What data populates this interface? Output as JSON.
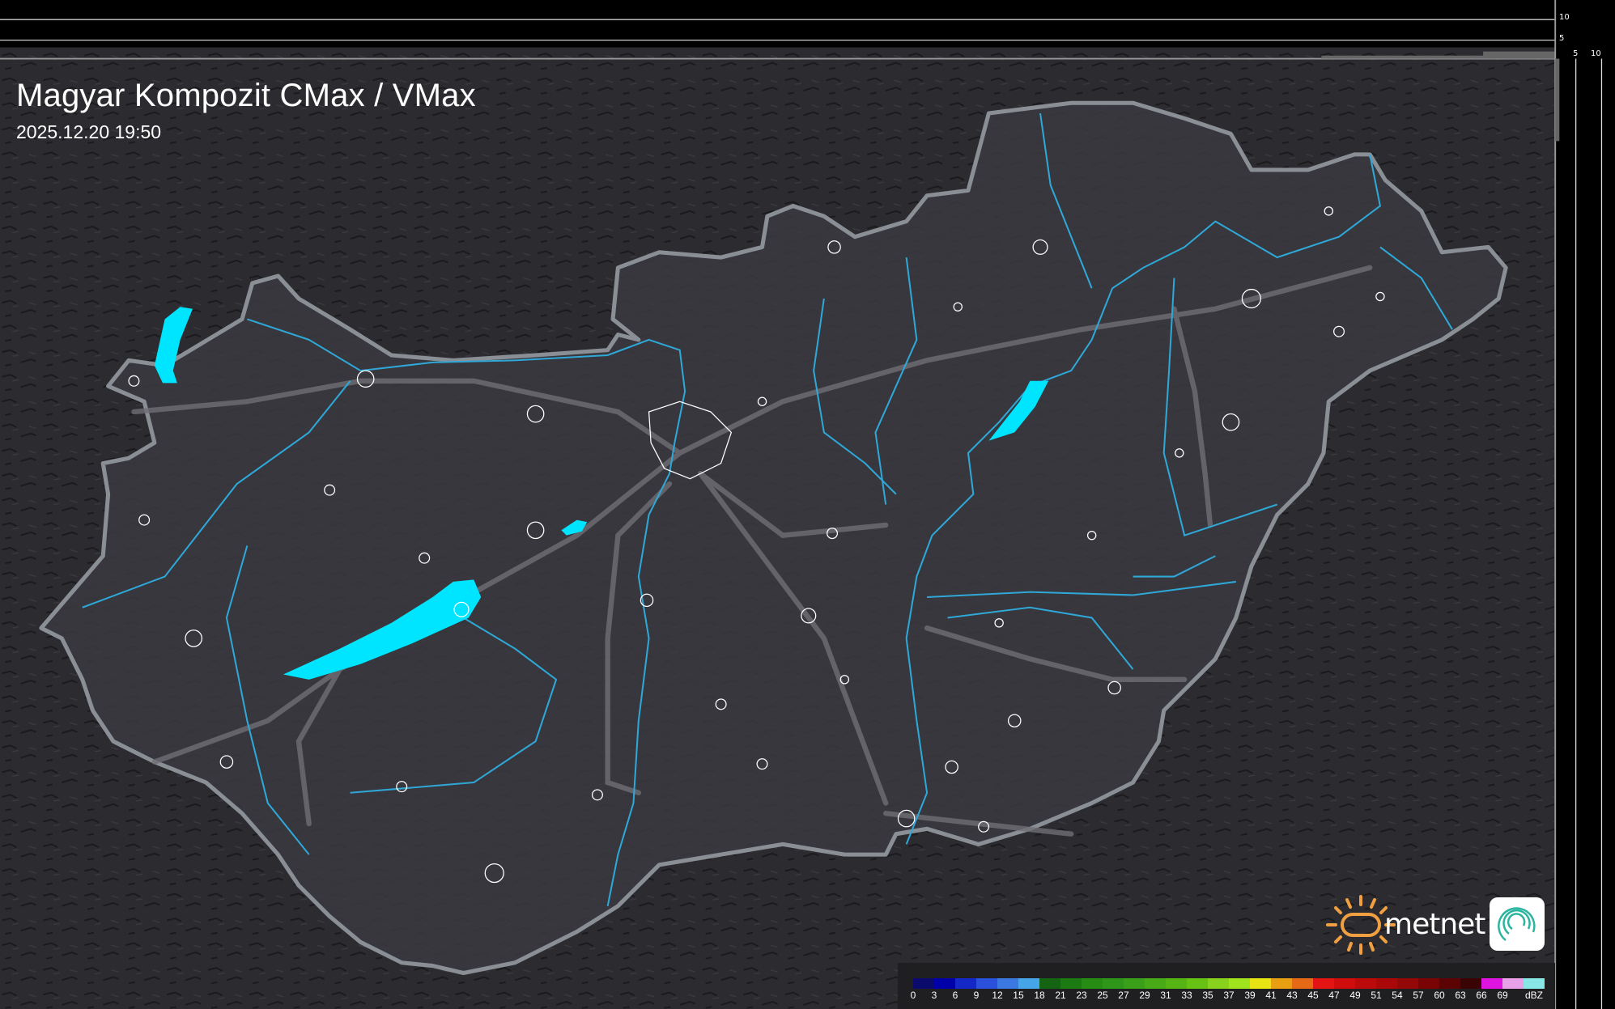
{
  "header": {
    "title": "Magyar Kompozit CMax / VMax",
    "timestamp": "2025.12.20 19:50"
  },
  "scale_ruler": {
    "vertical_ticks": [
      "10",
      "5"
    ],
    "horizontal_ticks": [
      "5",
      "10"
    ]
  },
  "logo": {
    "brand": "metnet"
  },
  "colors": {
    "background": "#2b2b2f",
    "country_fill": "#3a3a40",
    "border": "#8a8f96",
    "rivers": "#2fa8d8",
    "lakes": "#00e5ff",
    "roads": "#6e6e74",
    "cities": "#ffffff"
  },
  "legend": {
    "unit": "dBZ",
    "labels": [
      "0",
      "3",
      "6",
      "9",
      "12",
      "15",
      "18",
      "21",
      "23",
      "25",
      "27",
      "29",
      "31",
      "33",
      "35",
      "37",
      "39",
      "41",
      "43",
      "45",
      "47",
      "49",
      "51",
      "54",
      "57",
      "60",
      "63",
      "66",
      "69"
    ],
    "colors": [
      "#0b0b6e",
      "#0000a8",
      "#1428c8",
      "#2a50dc",
      "#3c78e2",
      "#46a4e8",
      "#146414",
      "#1c7a12",
      "#268c14",
      "#2e9618",
      "#3aa01a",
      "#48aa16",
      "#56b414",
      "#68c214",
      "#88d21e",
      "#a0e41e",
      "#e8e414",
      "#e8a012",
      "#e66a16",
      "#e41414",
      "#d00c0c",
      "#bc0a0a",
      "#aa0808",
      "#940808",
      "#7a0404",
      "#5c0404",
      "#3a0404",
      "#e014e0",
      "#e8a0e8",
      "#88e6e6"
    ]
  }
}
